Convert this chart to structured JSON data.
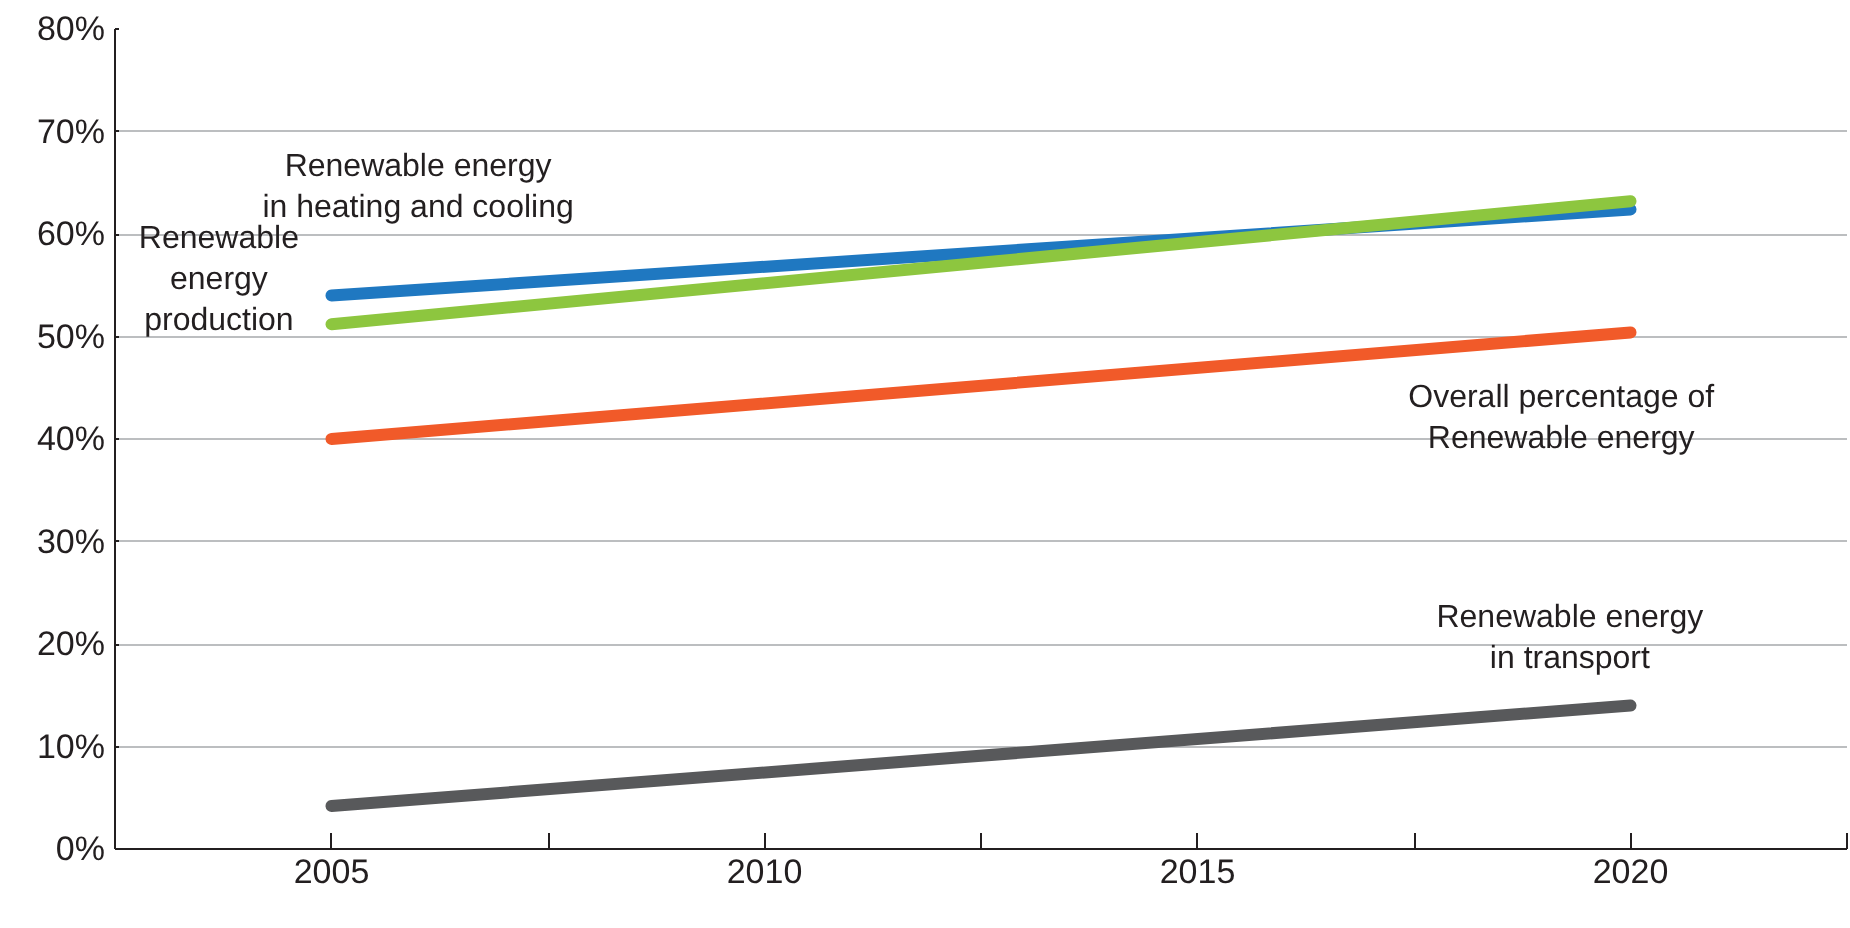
{
  "chart_data": {
    "type": "line",
    "x": [
      2005,
      2020
    ],
    "xlim": [
      2002.5,
      2022.5
    ],
    "xticks": [
      {
        "value": 2002.5,
        "label": null
      },
      {
        "value": 2005,
        "label": "2005"
      },
      {
        "value": 2007.5,
        "label": null
      },
      {
        "value": 2010,
        "label": "2010"
      },
      {
        "value": 2012.5,
        "label": null
      },
      {
        "value": 2015,
        "label": "2015"
      },
      {
        "value": 2017.5,
        "label": null
      },
      {
        "value": 2020,
        "label": "2020"
      },
      {
        "value": 2022.5,
        "label": null
      }
    ],
    "ylim": [
      0,
      80
    ],
    "yticks": [
      {
        "value": 0,
        "label": "0%"
      },
      {
        "value": 10,
        "label": "10%"
      },
      {
        "value": 20,
        "label": "20%"
      },
      {
        "value": 30,
        "label": "30%"
      },
      {
        "value": 40,
        "label": "40%"
      },
      {
        "value": 50,
        "label": "50%"
      },
      {
        "value": 60,
        "label": "60%"
      },
      {
        "value": 70,
        "label": "70%"
      },
      {
        "value": 80,
        "label": "80%"
      }
    ],
    "grid": "y",
    "legend": false,
    "marker": "none",
    "line_style": "solid",
    "series": [
      {
        "name": "Renewable energy\nin heating and cooling",
        "color": "#1f78c1",
        "values": [
          54,
          62.4
        ]
      },
      {
        "name": "Renewable\nenergy\nproduction",
        "color": "#8dc63f",
        "values": [
          51.2,
          63.2
        ]
      },
      {
        "name": "Overall percentage of\nRenewable energy",
        "color": "#f15a29",
        "values": [
          40,
          50.4
        ]
      },
      {
        "name": "Renewable energy\nin transport",
        "color": "#58595b",
        "values": [
          4.2,
          14
        ]
      }
    ]
  }
}
